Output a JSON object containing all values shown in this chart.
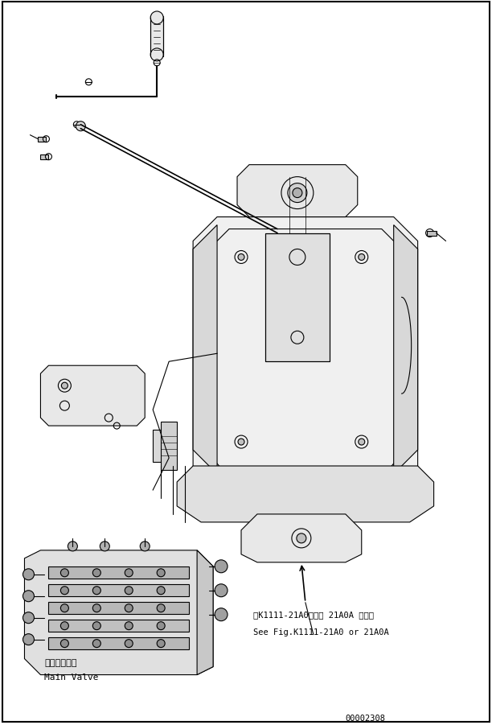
{
  "bg_color": "#ffffff",
  "line_color": "#000000",
  "fig_width": 6.12,
  "fig_height": 9.01,
  "dpi": 100,
  "annotation_jp": "第K1111-21A0または 21A0A 図参照",
  "annotation_en": "See Fig.K1111-21A0 or 21A0A",
  "label_jp": "メインバルブ",
  "label_en": "Main Valve",
  "part_number": "00002308"
}
